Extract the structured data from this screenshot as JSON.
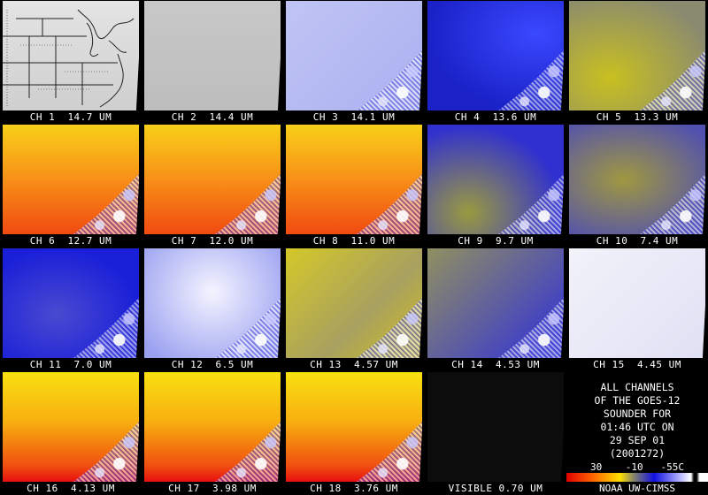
{
  "panels": [
    {
      "id": "ch1",
      "caption": "CH 1  14.7 UM"
    },
    {
      "id": "ch2",
      "caption": "CH 2  14.4 UM"
    },
    {
      "id": "ch3",
      "caption": "CH 3  14.1 UM"
    },
    {
      "id": "ch4",
      "caption": "CH 4  13.6 UM"
    },
    {
      "id": "ch5",
      "caption": "CH 5  13.3 UM"
    },
    {
      "id": "ch6",
      "caption": "CH 6  12.7 UM"
    },
    {
      "id": "ch7",
      "caption": "CH 7  12.0 UM"
    },
    {
      "id": "ch8",
      "caption": "CH 8  11.0 UM"
    },
    {
      "id": "ch9",
      "caption": "CH 9  9.7 UM"
    },
    {
      "id": "ch10",
      "caption": "CH 10  7.4 UM"
    },
    {
      "id": "ch11",
      "caption": "CH 11  7.0 UM"
    },
    {
      "id": "ch12",
      "caption": "CH 12  6.5 UM"
    },
    {
      "id": "ch13",
      "caption": "CH 13  4.57 UM"
    },
    {
      "id": "ch14",
      "caption": "CH 14  4.53 UM"
    },
    {
      "id": "ch15",
      "caption": "CH 15  4.45 UM"
    },
    {
      "id": "ch16",
      "caption": "CH 16  4.13 UM"
    },
    {
      "id": "ch17",
      "caption": "CH 17  3.98 UM"
    },
    {
      "id": "ch18",
      "caption": "CH 18  3.76 UM"
    },
    {
      "id": "visible",
      "caption": "VISIBLE 0.70 UM"
    }
  ],
  "info": {
    "line1": "ALL CHANNELS",
    "line2": "OF THE GOES-12",
    "line3": "SOUNDER FOR",
    "line4": "01:46 UTC ON",
    "line5": "29 SEP 01",
    "line6": "(2001272)",
    "scale": "30    -10   -55C",
    "credit": "NOAA UW-CIMSS"
  }
}
